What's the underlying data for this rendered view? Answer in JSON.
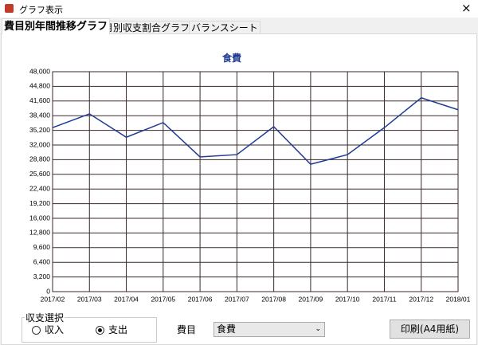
{
  "window": {
    "title": "グラフ表示",
    "close": "×"
  },
  "tabs": [
    "費目別年間推移グラフ",
    "月別収支割合グラフ",
    "バランスシート"
  ],
  "chart_data": {
    "type": "line",
    "title": "食費",
    "categories": [
      "2017/02",
      "2017/03",
      "2017/04",
      "2017/05",
      "2017/06",
      "2017/07",
      "2017/08",
      "2017/09",
      "2017/10",
      "2017/11",
      "2017/12",
      "2018/01"
    ],
    "values": [
      35800,
      38800,
      33700,
      36900,
      29400,
      29900,
      36000,
      27800,
      29900,
      35800,
      42300,
      39700
    ],
    "color": "#1f3a93",
    "ylim": [
      0,
      48000
    ],
    "yticks": [
      0,
      {
        "value": 3200,
        "label": "3,200"
      },
      {
        "value": 6400,
        "label": "6,400"
      },
      {
        "value": 9600,
        "label": "9,600"
      },
      {
        "value": 12800,
        "label": "12,800"
      },
      {
        "value": 16000,
        "label": "16,000"
      },
      {
        "value": 19200,
        "label": "19,200"
      },
      {
        "value": 22400,
        "label": "22,400"
      },
      {
        "value": 25600,
        "label": "25,600"
      },
      {
        "value": 28800,
        "label": "28,800"
      },
      {
        "value": 32000,
        "label": "32,000"
      },
      {
        "value": 35200,
        "label": "35,200"
      },
      {
        "value": 38400,
        "label": "38,400"
      },
      {
        "value": 41600,
        "label": "41,600"
      },
      {
        "value": 44800,
        "label": "44,800"
      },
      {
        "value": 48000,
        "label": "48,000"
      }
    ],
    "grid": true
  },
  "controls": {
    "group_label": "収支選択",
    "radio_income": "収入",
    "radio_expense": "支出",
    "category_label": "費目",
    "category_value": "食費",
    "print_button": "印刷(A4用紙)"
  }
}
